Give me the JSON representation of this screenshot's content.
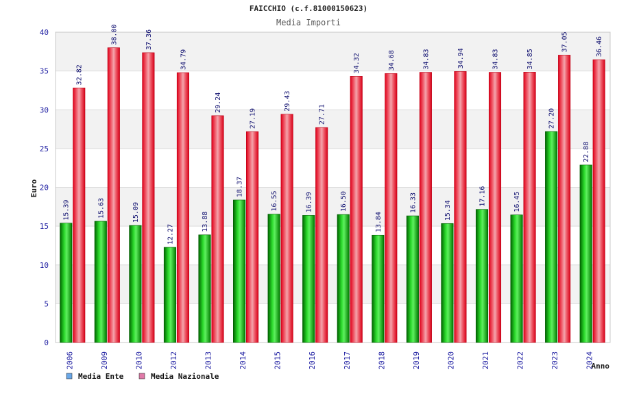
{
  "chart_data": {
    "type": "bar",
    "title": "FAICCHIO (c.f.81000150623)",
    "subtitle": "Media Importi",
    "ylabel": "Euro",
    "xlabel": "Anno",
    "ylim": [
      0,
      40
    ],
    "yticks": [
      0,
      5,
      10,
      15,
      20,
      25,
      30,
      35,
      40
    ],
    "grid": true,
    "legend_position": "bottom-left",
    "categories": [
      "2006",
      "2009",
      "2010",
      "2012",
      "2013",
      "2014",
      "2015",
      "2016",
      "2017",
      "2018",
      "2019",
      "2020",
      "2021",
      "2022",
      "2023",
      "2024"
    ],
    "series": [
      {
        "name": "Media Ente",
        "color": "#00b400",
        "legend_color": "#6aa8e8",
        "values": [
          15.39,
          15.63,
          15.09,
          12.27,
          13.88,
          18.37,
          16.55,
          16.39,
          16.5,
          13.84,
          16.33,
          15.34,
          17.16,
          16.45,
          27.2,
          22.88
        ],
        "labels": [
          "15.39",
          "15.63",
          "15.09",
          "12.27",
          "13.88",
          "18.37",
          "16.55",
          "16.39",
          "16.50",
          "13.84",
          "16.33",
          "15.34",
          "17.16",
          "16.45",
          "27.20",
          "22.88"
        ]
      },
      {
        "name": "Media Nazionale",
        "color": "#e8001e",
        "legend_color": "#e07aa8",
        "values": [
          32.82,
          38.0,
          37.36,
          34.79,
          29.24,
          27.19,
          29.43,
          27.71,
          34.32,
          34.68,
          34.83,
          34.94,
          34.83,
          34.85,
          37.05,
          36.46
        ],
        "labels": [
          "32.82",
          "38.00",
          "37.36",
          "34.79",
          "29.24",
          "27.19",
          "29.43",
          "27.71",
          "34.32",
          "34.68",
          "34.83",
          "34.94",
          "34.83",
          "34.85",
          "37.05",
          "36.46"
        ]
      }
    ]
  }
}
